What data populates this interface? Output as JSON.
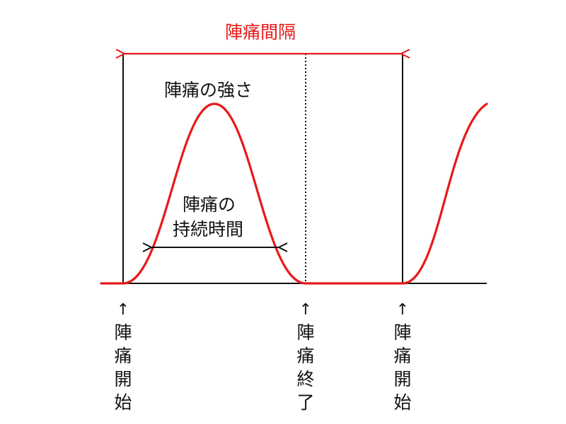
{
  "diagram": {
    "title": "陣痛間隔",
    "strength_label": "陣痛の強さ",
    "duration_label_line1": "陣痛の",
    "duration_label_line2": "持続時間",
    "markers": [
      {
        "arrow": "↑",
        "chars": [
          "陣",
          "痛",
          "開",
          "始"
        ]
      },
      {
        "arrow": "↑",
        "chars": [
          "陣",
          "痛",
          "終",
          "了"
        ]
      },
      {
        "arrow": "↑",
        "chars": [
          "陣",
          "痛",
          "開",
          "始"
        ]
      }
    ],
    "colors": {
      "accent": "#e8191a",
      "line": "#111111"
    }
  }
}
